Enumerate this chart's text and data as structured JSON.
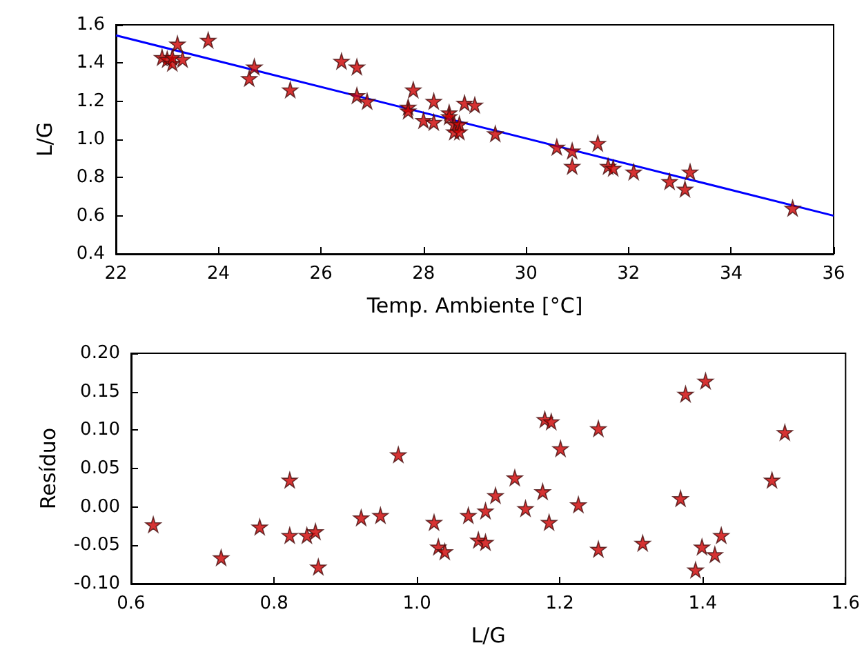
{
  "chart_data": [
    {
      "type": "scatter",
      "xlabel": "Temp. Ambiente [°C]",
      "ylabel": "L/G",
      "grid": false,
      "xlim": [
        22,
        36
      ],
      "xticks": [
        22,
        24,
        26,
        28,
        30,
        32,
        34,
        36
      ],
      "ylim": [
        0.4,
        1.6
      ],
      "yticks": [
        0.4,
        0.6,
        0.8,
        {
          "value": 1,
          "label": "1.0"
        },
        1.2,
        1.4,
        1.6
      ],
      "series": [
        {
          "marker": "star",
          "color": "#cc0000",
          "x": [
            22.9,
            23.0,
            23.1,
            23.2,
            23.3,
            23.1,
            23.8,
            24.6,
            24.7,
            25.4,
            26.4,
            26.7,
            26.7,
            26.9,
            27.7,
            27.7,
            27.8,
            28.0,
            28.2,
            28.2,
            28.5,
            28.5,
            28.6,
            28.6,
            28.7,
            28.7,
            28.8,
            29.0,
            29.4,
            30.6,
            30.9,
            30.9,
            31.4,
            31.6,
            31.7,
            32.1,
            32.8,
            33.1,
            33.2,
            35.2
          ],
          "values": [
            1.43,
            1.42,
            1.4,
            1.5,
            1.42,
            1.43,
            1.52,
            1.32,
            1.38,
            1.26,
            1.41,
            1.38,
            1.23,
            1.2,
            1.17,
            1.15,
            1.26,
            1.1,
            1.09,
            1.2,
            1.14,
            1.12,
            1.08,
            1.04,
            1.08,
            1.04,
            1.19,
            1.18,
            1.03,
            0.96,
            0.94,
            0.86,
            0.98,
            0.86,
            0.85,
            0.83,
            0.78,
            0.74,
            0.83,
            0.64
          ]
        },
        {
          "type": "line",
          "marker": "none",
          "color": "#0000ff",
          "x": [
            22,
            36
          ],
          "values": [
            1.545,
            0.6
          ]
        }
      ]
    },
    {
      "type": "scatter",
      "xlabel": "L/G",
      "ylabel": "Resíduo",
      "grid": false,
      "xlim": [
        0.6,
        1.6
      ],
      "xticks": [
        0.6,
        0.8,
        {
          "value": 1,
          "label": "1.0"
        },
        1.2,
        1.4,
        1.6
      ],
      "ylim": [
        -0.1,
        0.2
      ],
      "yticks": [
        {
          "value": -0.1,
          "label": "-0.10"
        },
        {
          "value": -0.05,
          "label": "-0.05"
        },
        {
          "value": 0,
          "label": "0.00"
        },
        {
          "value": 0.05,
          "label": "0.05"
        },
        {
          "value": 0.1,
          "label": "0.10"
        },
        {
          "value": 0.15,
          "label": "0.15"
        },
        {
          "value": 0.2,
          "label": "0.20"
        }
      ],
      "series": [
        {
          "marker": "star",
          "color": "#cc0000",
          "x": [
            0.631,
            0.726,
            0.78,
            0.822,
            0.822,
            0.846,
            0.858,
            0.862,
            0.922,
            0.949,
            0.974,
            1.024,
            1.03,
            1.039,
            1.072,
            1.086,
            1.096,
            1.096,
            1.11,
            1.137,
            1.152,
            1.176,
            1.179,
            1.188,
            1.185,
            1.201,
            1.226,
            1.254,
            1.254,
            1.316,
            1.369,
            1.376,
            1.404,
            1.39,
            1.399,
            1.417,
            1.426,
            1.497,
            1.515
          ],
          "values": [
            -0.023,
            -0.066,
            -0.026,
            0.035,
            -0.037,
            -0.037,
            -0.032,
            -0.078,
            -0.014,
            -0.011,
            0.068,
            -0.02,
            -0.052,
            -0.058,
            -0.011,
            -0.043,
            -0.046,
            -0.005,
            0.015,
            0.038,
            -0.002,
            0.02,
            0.114,
            0.111,
            -0.02,
            0.076,
            0.003,
            0.102,
            -0.055,
            -0.047,
            0.011,
            0.147,
            0.164,
            -0.082,
            -0.052,
            -0.062,
            -0.037,
            0.035,
            0.097
          ]
        }
      ]
    }
  ]
}
